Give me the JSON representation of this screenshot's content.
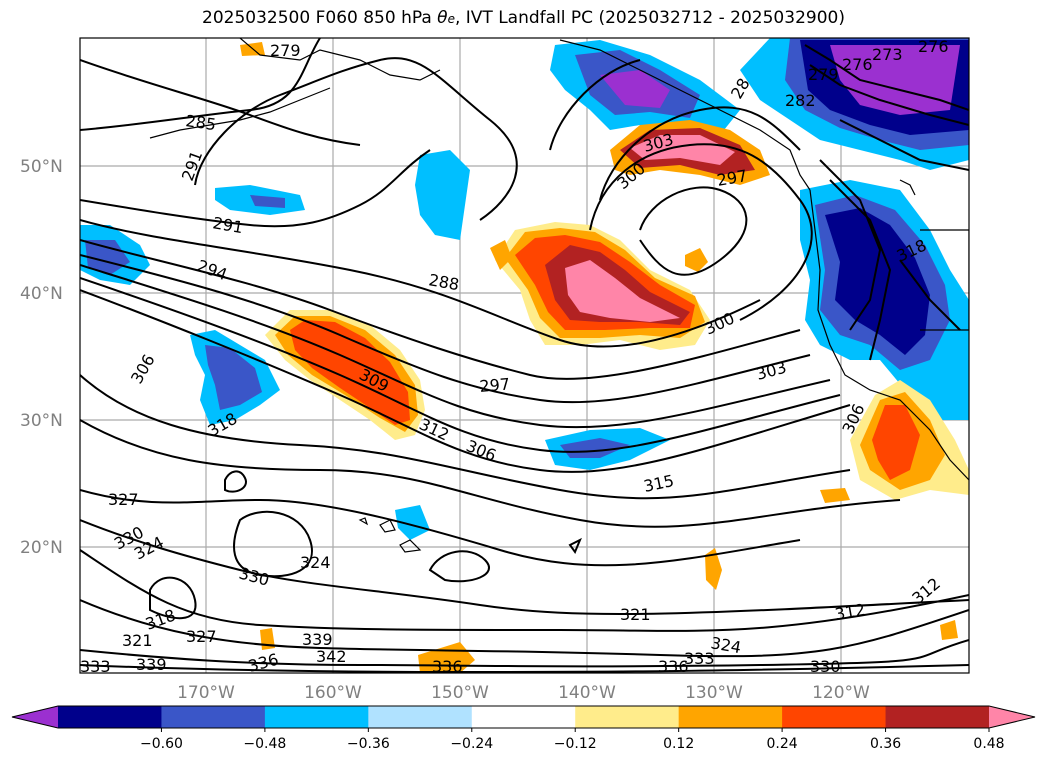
{
  "title": {
    "prefix": "2025032500 F060 850 hPa ",
    "var_main": "θ",
    "var_sub": "e",
    "suffix": ", IVT Landfall PC (2025032712 - 2025032900)"
  },
  "map": {
    "lon_labels": [
      "170°W",
      "160°W",
      "150°W",
      "140°W",
      "130°W",
      "120°W"
    ],
    "lat_labels": [
      "50°N",
      "40°N",
      "30°N",
      "20°N"
    ],
    "contour_labels": [
      "279",
      "285",
      "291",
      "291",
      "294",
      "288",
      "282",
      "279",
      "276",
      "273",
      "276",
      "303",
      "300",
      "297",
      "300",
      "303",
      "297",
      "306",
      "309",
      "312",
      "306",
      "318",
      "315",
      "306",
      "318",
      "327",
      "330",
      "324",
      "330",
      "324",
      "318",
      "321",
      "327",
      "339",
      "342",
      "336",
      "333",
      "339",
      "336",
      "321",
      "324",
      "333",
      "336",
      "312",
      "330",
      "312",
      "28"
    ]
  },
  "colorbar": {
    "colors": [
      "#9b30d0",
      "#00008b",
      "#3a56c8",
      "#00bfff",
      "#b0e2ff",
      "#ffffff",
      "#ffec8b",
      "#ffa500",
      "#ff4500",
      "#b22222",
      "#ff85a8"
    ],
    "tick_labels": [
      "−0.60",
      "−0.48",
      "−0.36",
      "−0.24",
      "−0.12",
      "0.12",
      "0.24",
      "0.36",
      "0.48",
      "0.60"
    ]
  }
}
